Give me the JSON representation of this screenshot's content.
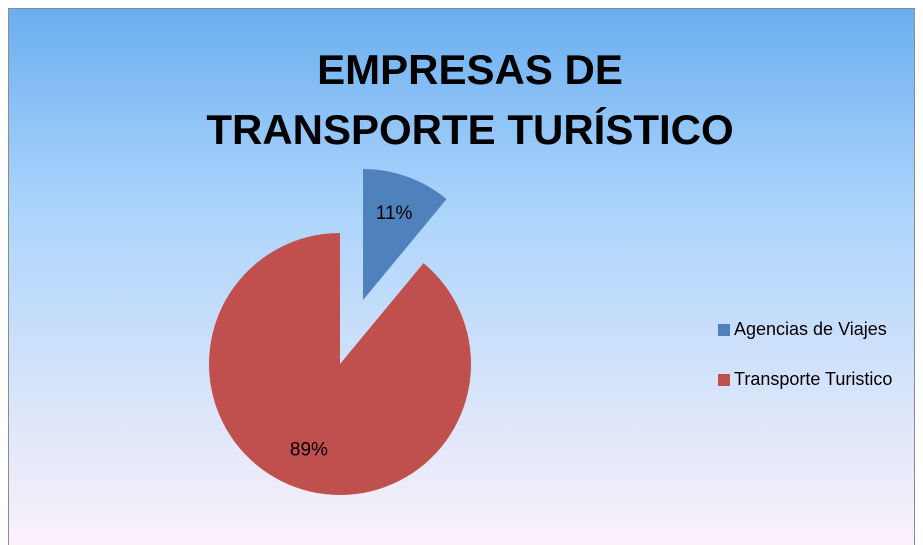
{
  "chart_data": {
    "type": "pie",
    "title": "EMPRESAS DE TRANSPORTE TURÍSTICO",
    "categories": [
      "Agencias de Viajes",
      "Transporte Turistico"
    ],
    "values": [
      11,
      89
    ],
    "value_labels": [
      "11%",
      "89%"
    ],
    "colors": [
      "#4f81bd",
      "#c0504d"
    ],
    "explode": [
      true,
      false
    ],
    "legend": "right"
  }
}
